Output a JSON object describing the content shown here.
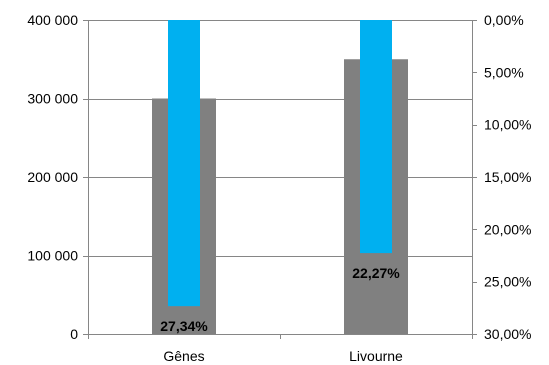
{
  "chart_data": {
    "type": "bar",
    "categories": [
      "Gênes",
      "Livourne"
    ],
    "series": [
      {
        "axis": "left",
        "values": [
          300000,
          350000
        ],
        "color": "#808080"
      },
      {
        "axis": "right",
        "values": [
          27.34,
          22.27
        ],
        "data_labels": [
          "27,34%",
          "22,27%"
        ],
        "color": "#00B0F0"
      }
    ],
    "y_left": {
      "min": 0,
      "max": 400000,
      "ticks": [
        0,
        100000,
        200000,
        300000,
        400000
      ],
      "tick_labels": [
        "0",
        "100 000",
        "200 000",
        "300 000",
        "400 000"
      ]
    },
    "y_right": {
      "min": 0,
      "max": 30,
      "reversed": true,
      "ticks": [
        0,
        5,
        10,
        15,
        20,
        25,
        30
      ],
      "tick_labels": [
        "0,00%",
        "5,00%",
        "10,00%",
        "15,00%",
        "20,00%",
        "25,00%",
        "30,00%"
      ]
    },
    "grid": true,
    "legend": "none"
  }
}
